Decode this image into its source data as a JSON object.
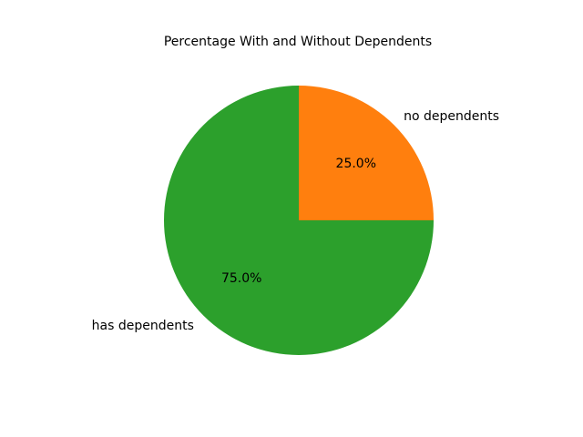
{
  "chart_data": {
    "type": "pie",
    "title": "Percentage With and Without Dependents",
    "slices": [
      {
        "label": "no dependents",
        "value": 25.0,
        "pct_label": "25.0%",
        "color": "#ff7f0e"
      },
      {
        "label": "has dependents",
        "value": 75.0,
        "pct_label": "75.0%",
        "color": "#2ca02c"
      }
    ],
    "start_angle_deg": 90,
    "direction": "clockwise"
  }
}
